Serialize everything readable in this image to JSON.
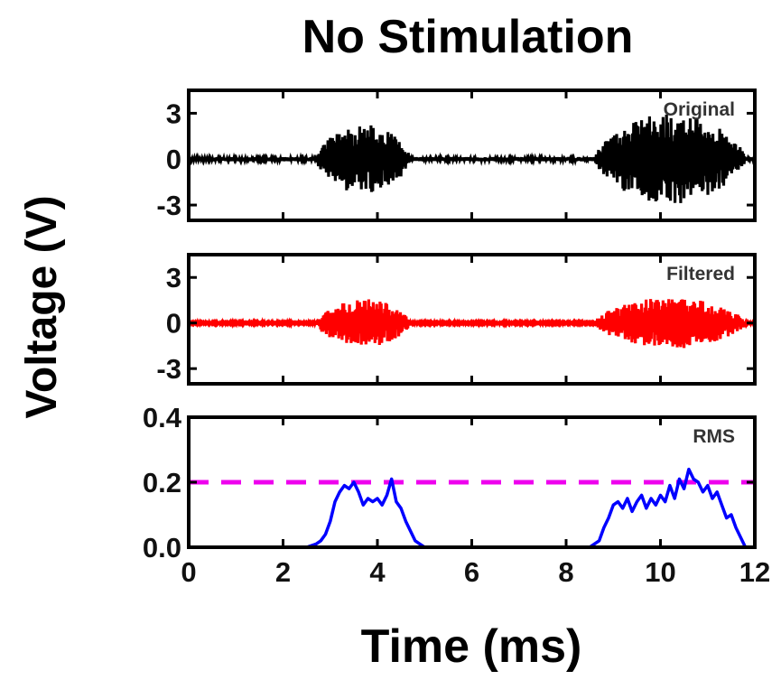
{
  "chart_data": {
    "title": "No Stimulation",
    "xlabel": "Time (ms)",
    "ylabel": "Voltage (V)",
    "x_ticks": [
      "0",
      "2",
      "4",
      "6",
      "8",
      "10",
      "12"
    ],
    "xlim": [
      0,
      12
    ],
    "panels": [
      {
        "type": "line",
        "label": "Original",
        "color": "#000000",
        "ylim": [
          -4,
          4.5
        ],
        "y_ticks": [
          3,
          0,
          -3
        ],
        "y_tick_labels": [
          "3",
          "0",
          "-3"
        ],
        "bursts": [
          {
            "start": 2.7,
            "end": 4.7,
            "peak": 2.3
          },
          {
            "start": 8.6,
            "end": 11.8,
            "peak": 3.0
          }
        ],
        "noise": 0.1
      },
      {
        "type": "line",
        "label": "Filtered",
        "color": "#ff0000",
        "ylim": [
          -4,
          4.5
        ],
        "y_ticks": [
          3,
          0,
          -3
        ],
        "y_tick_labels": [
          "3",
          "0",
          "-3"
        ],
        "bursts": [
          {
            "start": 2.7,
            "end": 4.7,
            "peak": 1.6
          },
          {
            "start": 8.6,
            "end": 11.8,
            "peak": 1.7
          }
        ],
        "noise": 0.05
      },
      {
        "type": "line",
        "label": "RMS",
        "color": "#0000ff",
        "ylim": [
          0,
          0.4
        ],
        "y_ticks": [
          0.4,
          0.2,
          0.0
        ],
        "y_tick_labels": [
          "0.4",
          "0.2",
          "0.0"
        ],
        "threshold": {
          "value": 0.2,
          "color": "#ee00ee"
        },
        "x": [
          0,
          0.5,
          1.0,
          1.5,
          2.0,
          2.5,
          2.7,
          2.8,
          2.9,
          3.0,
          3.1,
          3.2,
          3.3,
          3.4,
          3.5,
          3.6,
          3.7,
          3.8,
          3.9,
          4.0,
          4.1,
          4.2,
          4.3,
          4.4,
          4.5,
          4.6,
          4.7,
          4.8,
          4.9,
          5.0,
          5.5,
          6.0,
          6.5,
          7.0,
          7.5,
          8.0,
          8.5,
          8.7,
          8.8,
          8.9,
          9.0,
          9.1,
          9.2,
          9.3,
          9.4,
          9.5,
          9.6,
          9.7,
          9.8,
          9.9,
          10.0,
          10.1,
          10.2,
          10.3,
          10.4,
          10.5,
          10.6,
          10.7,
          10.8,
          10.9,
          11.0,
          11.1,
          11.2,
          11.3,
          11.4,
          11.5,
          11.6,
          11.8,
          12.0
        ],
        "y": [
          0.0,
          0.0,
          0.0,
          0.0,
          0.0,
          0.0,
          0.01,
          0.02,
          0.04,
          0.08,
          0.14,
          0.17,
          0.19,
          0.18,
          0.2,
          0.17,
          0.13,
          0.15,
          0.14,
          0.15,
          0.13,
          0.16,
          0.21,
          0.14,
          0.12,
          0.08,
          0.05,
          0.02,
          0.01,
          0.0,
          0.0,
          0.0,
          0.0,
          0.0,
          0.0,
          0.0,
          0.0,
          0.02,
          0.06,
          0.09,
          0.13,
          0.14,
          0.12,
          0.15,
          0.11,
          0.14,
          0.16,
          0.12,
          0.15,
          0.13,
          0.16,
          0.14,
          0.19,
          0.15,
          0.21,
          0.18,
          0.24,
          0.21,
          0.2,
          0.17,
          0.19,
          0.15,
          0.17,
          0.13,
          0.09,
          0.1,
          0.06,
          0.0,
          0.0
        ]
      }
    ]
  }
}
